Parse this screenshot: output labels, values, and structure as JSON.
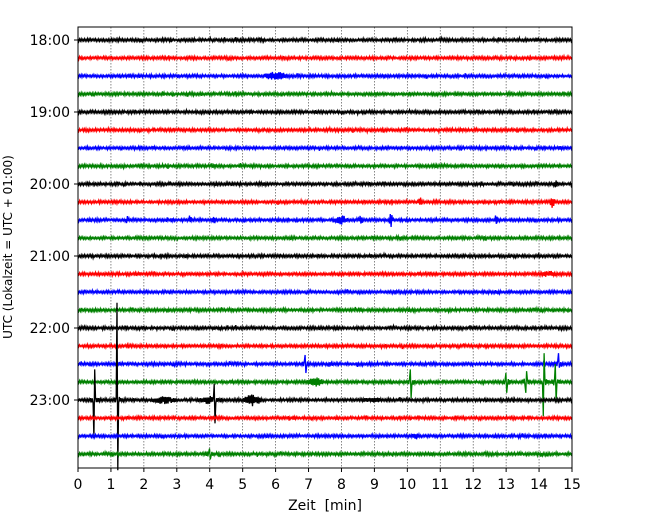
{
  "chart_data": {
    "type": "line",
    "subtype": "helicorder",
    "title": "",
    "xlabel": "Zeit  [min]",
    "ylabel": "UTC (Lokalzeit = UTC + 01:00)",
    "xlim": [
      0,
      15
    ],
    "x_ticks": [
      "0",
      "1",
      "2",
      "3",
      "4",
      "5",
      "6",
      "7",
      "8",
      "9",
      "10",
      "11",
      "12",
      "13",
      "14",
      "15"
    ],
    "y_tick_labels": [
      "18:00",
      "19:00",
      "20:00",
      "21:00",
      "22:00",
      "23:00"
    ],
    "grid": "vertical dotted",
    "trace_colors": [
      "#000000",
      "#ff0000",
      "#0000ff",
      "#008000"
    ],
    "traces": [
      "18:00",
      "18:15",
      "18:30",
      "18:45",
      "19:00",
      "19:15",
      "19:30",
      "19:45",
      "20:00",
      "20:15",
      "20:30",
      "20:45",
      "21:00",
      "21:15",
      "21:30",
      "21:45",
      "22:00",
      "22:15",
      "22:30",
      "22:45",
      "23:00",
      "23:15",
      "23:30",
      "23:45"
    ],
    "events": [
      {
        "trace": "18:30",
        "minute": 6.0,
        "up": 0.3,
        "down": 0.3,
        "dur": 0.7
      },
      {
        "trace": "20:00",
        "minute": 14.5,
        "up": 0.3,
        "down": 0.3,
        "dur": 0.1
      },
      {
        "trace": "20:15",
        "minute": 10.4,
        "up": 0.4,
        "down": 0.4,
        "dur": 0.1
      },
      {
        "trace": "20:15",
        "minute": 14.4,
        "up": 0.35,
        "down": 0.35,
        "dur": 0.2
      },
      {
        "trace": "20:30",
        "minute": 1.5,
        "up": 0.25,
        "down": 0.25,
        "dur": 0.1
      },
      {
        "trace": "20:30",
        "minute": 3.4,
        "up": 0.3,
        "down": 0.3,
        "dur": 0.1
      },
      {
        "trace": "20:30",
        "minute": 4.1,
        "up": 0.25,
        "down": 0.25,
        "dur": 0.2
      },
      {
        "trace": "20:30",
        "minute": 8.0,
        "up": 0.3,
        "down": 0.3,
        "dur": 0.4
      },
      {
        "trace": "20:30",
        "minute": 8.6,
        "up": 0.4,
        "down": 0.4,
        "dur": 0.1
      },
      {
        "trace": "20:30",
        "minute": 9.5,
        "up": 0.45,
        "down": 0.45,
        "dur": 0.1
      },
      {
        "trace": "20:30",
        "minute": 12.7,
        "up": 0.35,
        "down": 0.35,
        "dur": 0.1
      },
      {
        "trace": "21:15",
        "minute": 14.3,
        "up": 0.2,
        "down": 0.2,
        "dur": 0.7
      },
      {
        "trace": "22:30",
        "minute": 6.9,
        "up": 0.5,
        "down": 0.5,
        "dur": 0.05
      },
      {
        "trace": "22:30",
        "minute": 14.6,
        "up": 0.6,
        "down": 0.2,
        "dur": 0.05
      },
      {
        "trace": "22:45",
        "minute": 7.2,
        "up": 0.4,
        "down": 0.3,
        "dur": 0.5
      },
      {
        "trace": "22:45",
        "minute": 10.1,
        "up": 0.7,
        "down": 0.9,
        "dur": 0.05
      },
      {
        "trace": "22:45",
        "minute": 13.0,
        "up": 0.5,
        "down": 0.6,
        "dur": 0.05
      },
      {
        "trace": "22:45",
        "minute": 13.6,
        "up": 0.6,
        "down": 0.6,
        "dur": 0.05
      },
      {
        "trace": "22:45",
        "minute": 14.15,
        "up": 1.6,
        "down": 1.9,
        "dur": 0.05
      },
      {
        "trace": "22:45",
        "minute": 14.5,
        "up": 1.0,
        "down": 1.1,
        "dur": 0.05
      },
      {
        "trace": "23:00",
        "minute": 0.5,
        "up": 1.7,
        "down": 2.1,
        "dur": 0.05
      },
      {
        "trace": "23:00",
        "minute": 1.2,
        "up": 5.4,
        "down": 3.9,
        "dur": 0.05
      },
      {
        "trace": "23:00",
        "minute": 2.6,
        "up": 0.25,
        "down": 0.25,
        "dur": 0.8
      },
      {
        "trace": "23:00",
        "minute": 4.0,
        "up": 0.25,
        "down": 0.25,
        "dur": 0.8
      },
      {
        "trace": "23:00",
        "minute": 4.15,
        "up": 0.9,
        "down": 1.3,
        "dur": 0.05
      },
      {
        "trace": "23:00",
        "minute": 5.3,
        "up": 0.35,
        "down": 0.35,
        "dur": 0.6
      },
      {
        "trace": "23:00",
        "minute": 9.0,
        "up": 0.15,
        "down": 0.15,
        "dur": 1.5
      },
      {
        "trace": "23:30",
        "minute": 10.3,
        "up": 0.2,
        "down": 0.2,
        "dur": 0.3
      },
      {
        "trace": "23:45",
        "minute": 4.0,
        "up": 0.3,
        "down": 0.3,
        "dur": 0.05
      }
    ]
  }
}
